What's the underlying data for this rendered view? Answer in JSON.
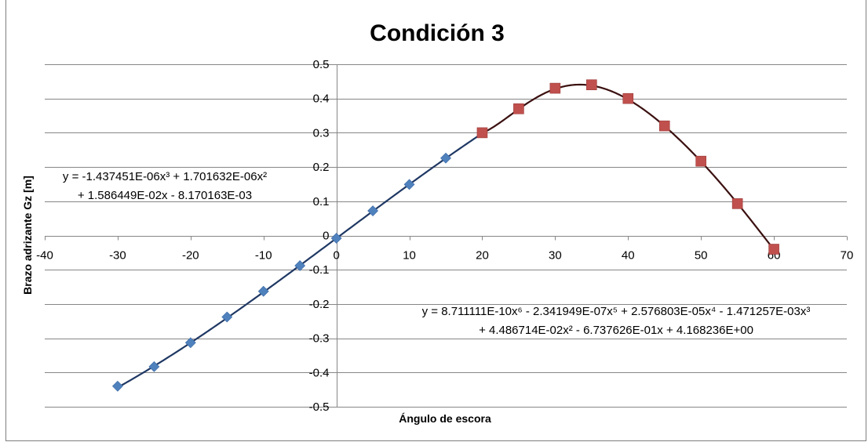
{
  "chart_data": {
    "type": "scatter",
    "title": "Condición 3",
    "xlabel": "Ángulo de escora",
    "ylabel": "Brazo adrizante Gz [m]",
    "xlim": [
      -40,
      70
    ],
    "ylim": [
      -0.5,
      0.5
    ],
    "x_ticks": [
      -40,
      -30,
      -20,
      -10,
      0,
      10,
      20,
      30,
      40,
      50,
      60,
      70
    ],
    "y_ticks": [
      -0.5,
      -0.4,
      -0.3,
      -0.2,
      -0.1,
      0,
      0.1,
      0.2,
      0.3,
      0.4,
      0.5
    ],
    "x_tick_labels": [
      "-40",
      "-30",
      "-20",
      "-10",
      "0",
      "10",
      "20",
      "30",
      "40",
      "50",
      "60",
      "70"
    ],
    "y_tick_labels": [
      "-0.5",
      "-0.4",
      "-0.3",
      "-0.2",
      "-0.1",
      "0",
      "0.1",
      "0.2",
      "0.3",
      "0.4",
      "0.5"
    ],
    "grid": "horizontal",
    "series": [
      {
        "marker": "diamond",
        "color": "#4f81bd",
        "x": [
          -30,
          -25,
          -20,
          -15,
          -10,
          -5,
          0,
          5,
          10,
          15
        ],
        "y": [
          -0.44,
          -0.383,
          -0.313,
          -0.238,
          -0.163,
          -0.088,
          -0.008,
          0.072,
          0.149,
          0.226
        ]
      },
      {
        "marker": "square",
        "color": "#c0504d",
        "x": [
          20,
          25,
          30,
          35,
          40,
          45,
          50,
          55,
          60
        ],
        "y": [
          0.3,
          0.37,
          0.43,
          0.44,
          0.4,
          0.32,
          0.217,
          0.093,
          -0.04
        ]
      }
    ],
    "trendlines": [
      {
        "color": "#1f3864",
        "x_range": [
          -30,
          20
        ],
        "coefficients_high_to_low": [
          -1.437451e-06,
          1.701632e-06,
          0.01586449,
          -0.008170163
        ],
        "equation_line1": "y = -1.437451E-06x³ + 1.701632E-06x²",
        "equation_line2": "+ 1.586449E-02x - 8.170163E-03"
      },
      {
        "color": "#3b1010",
        "x_range": [
          20,
          60
        ],
        "coefficients_high_to_low": [
          8.711111e-10,
          -2.341949e-07,
          2.576803e-05,
          -0.001471257,
          0.04486714,
          -0.6737626,
          4.168236
        ],
        "equation_line1": "y = 8.711111E-10x⁶ - 2.341949E-07x⁵ + 2.576803E-05x⁴ - 1.471257E-03x³",
        "equation_line2": "+ 4.486714E-02x² - 6.737626E-01x + 4.168236E+00"
      }
    ]
  }
}
